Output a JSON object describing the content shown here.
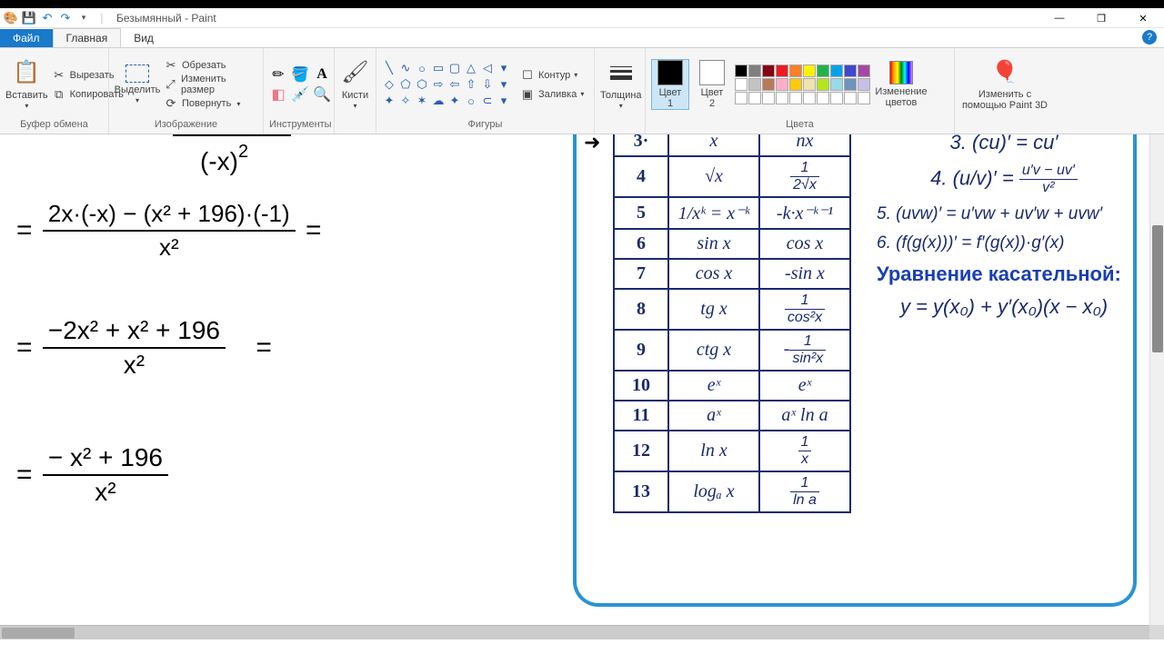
{
  "window": {
    "title": "Безымянный - Paint",
    "qat_save": "💾",
    "qat_undo": "↶",
    "qat_redo": "↷",
    "qat_dd": "▾"
  },
  "tabs": {
    "file": "Файл",
    "home": "Главная",
    "view": "Вид"
  },
  "ribbon": {
    "clipboard": {
      "label": "Буфер обмена",
      "paste": "Вставить",
      "cut": "Вырезать",
      "copy": "Копировать"
    },
    "image": {
      "label": "Изображение",
      "select": "Выделить",
      "crop": "Обрезать",
      "resize": "Изменить размер",
      "rotate": "Повернуть"
    },
    "tools": {
      "label": "Инструменты"
    },
    "brushes": {
      "label": "Кисти"
    },
    "shapes": {
      "label": "Фигуры",
      "outline": "Контур",
      "fill": "Заливка"
    },
    "size": {
      "label": "Толщина"
    },
    "colors": {
      "label": "Цвета",
      "c1": "Цвет\n1",
      "c2": "Цвет\n2",
      "edit": "Изменение\nцветов",
      "c1_hex": "#000000",
      "c2_hex": "#ffffff"
    },
    "paint3d": {
      "label": "Изменить с\nпомощью Paint 3D"
    },
    "palette": [
      [
        "#000000",
        "#7f7f7f",
        "#880015",
        "#ed1c24",
        "#ff7f27",
        "#fff200",
        "#22b14c",
        "#00a2e8",
        "#3f48cc",
        "#a349a4"
      ],
      [
        "#ffffff",
        "#c3c3c3",
        "#b97a57",
        "#ffaec9",
        "#ffc90e",
        "#efe4b0",
        "#b5e61d",
        "#99d9ea",
        "#7092be",
        "#c8bfe7"
      ],
      [
        "#ffffff",
        "#ffffff",
        "#ffffff",
        "#ffffff",
        "#ffffff",
        "#ffffff",
        "#ffffff",
        "#ffffff",
        "#ffffff",
        "#ffffff"
      ]
    ]
  },
  "handwriting": {
    "l0_num": "(-x)",
    "l0_sup": "2",
    "l1_eq": "=",
    "l1_num": "2x·(-x) − (x² + 196)·(-1)",
    "l1_den": "x²",
    "l1_eq2": "=",
    "l2_eq": "=",
    "l2_num": "−2x² + x² + 196",
    "l2_den": "x²",
    "l2_eq2": "=",
    "l3_eq": "=",
    "l3_num": "− x² + 196",
    "l3_den": "x²"
  },
  "table": {
    "rows": [
      {
        "n": "3·",
        "f": "x",
        "d": "nx"
      },
      {
        "n": "4",
        "f": "√x",
        "d": "1 / 2√x"
      },
      {
        "n": "5",
        "f": "1/xᵏ = x⁻ᵏ",
        "d": "-k·x⁻ᵏ⁻¹"
      },
      {
        "n": "6",
        "f": "sin x",
        "d": "cos x"
      },
      {
        "n": "7",
        "f": "cos x",
        "d": "-sin x"
      },
      {
        "n": "8",
        "f": "tg x",
        "d": "1 / cos²x"
      },
      {
        "n": "9",
        "f": "ctg x",
        "d": "- 1 / sin²x"
      },
      {
        "n": "10",
        "f": "eˣ",
        "d": "eˣ"
      },
      {
        "n": "11",
        "f": "aˣ",
        "d": "aˣ ln a"
      },
      {
        "n": "12",
        "f": "ln x",
        "d": "1 / x"
      },
      {
        "n": "13",
        "f": "logₐ x",
        "d": "1 / ln a"
      }
    ]
  },
  "rules": {
    "r3": "3. (cu)′ = cu′",
    "r4_lhs": "4. (u/v)′ =",
    "r4_num": "u′v − uv′",
    "r4_den": "v²",
    "r5": "5. (uvw)′ = u′vw + uv′w + uvw′",
    "r6": "6. (f(g(x)))′ = f′(g(x))·g′(x)",
    "tangent_title": "Уравнение касательной:",
    "tangent": "y = y(x₀) + y′(x₀)(x − x₀)"
  }
}
